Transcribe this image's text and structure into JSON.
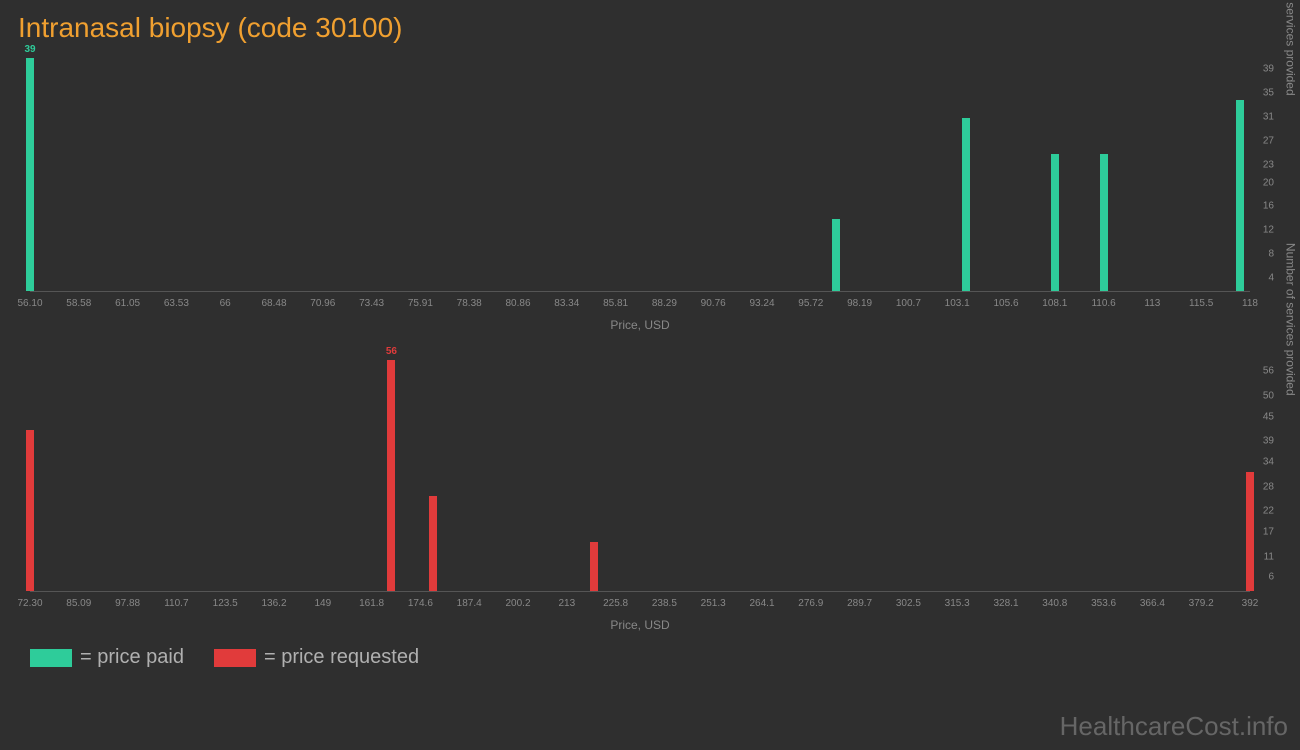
{
  "title": "Intranasal biopsy (code 30100)",
  "watermark": "HealthcareCost.info",
  "legend": {
    "paid": {
      "label": "= price paid",
      "color": "#2ecc9a"
    },
    "requested": {
      "label": "= price requested",
      "color": "#e13b3b"
    }
  },
  "chart_top": {
    "type": "bar",
    "bar_color": "#2ecc9a",
    "x_label": "Price, USD",
    "y_label": "Number of services provided",
    "x_min": 56.1,
    "x_max": 118,
    "x_ticks": [
      "56.10",
      "58.58",
      "61.05",
      "63.53",
      "66",
      "68.48",
      "70.96",
      "73.43",
      "75.91",
      "78.38",
      "80.86",
      "83.34",
      "85.81",
      "88.29",
      "90.76",
      "93.24",
      "95.72",
      "98.19",
      "100.7",
      "103.1",
      "105.6",
      "108.1",
      "110.6",
      "113",
      "115.5",
      "118"
    ],
    "y_max": 40,
    "y_ticks": [
      4,
      8,
      12,
      16,
      20,
      23,
      27,
      31,
      35,
      39
    ],
    "bars": [
      {
        "x": 56.1,
        "y": 39,
        "label": "39"
      },
      {
        "x": 97.0,
        "y": 12
      },
      {
        "x": 103.6,
        "y": 29
      },
      {
        "x": 108.1,
        "y": 23
      },
      {
        "x": 110.6,
        "y": 23
      },
      {
        "x": 117.5,
        "y": 32
      }
    ]
  },
  "chart_bottom": {
    "type": "bar",
    "bar_color": "#e13b3b",
    "x_label": "Price, USD",
    "y_label": "Number of services provided",
    "x_min": 72.3,
    "x_max": 392,
    "x_ticks": [
      "72.30",
      "85.09",
      "97.88",
      "110.7",
      "123.5",
      "136.2",
      "149",
      "161.8",
      "174.6",
      "187.4",
      "200.2",
      "213",
      "225.8",
      "238.5",
      "251.3",
      "264.1",
      "276.9",
      "289.7",
      "302.5",
      "315.3",
      "328.1",
      "340.8",
      "353.6",
      "366.4",
      "379.2",
      "392"
    ],
    "y_max": 58,
    "y_ticks": [
      6,
      11,
      17,
      22,
      28,
      34,
      39,
      45,
      50,
      56
    ],
    "bars": [
      {
        "x": 72.3,
        "y": 39
      },
      {
        "x": 167.0,
        "y": 56,
        "label": "56"
      },
      {
        "x": 178.0,
        "y": 23
      },
      {
        "x": 220.0,
        "y": 12
      },
      {
        "x": 392.0,
        "y": 29
      }
    ]
  }
}
